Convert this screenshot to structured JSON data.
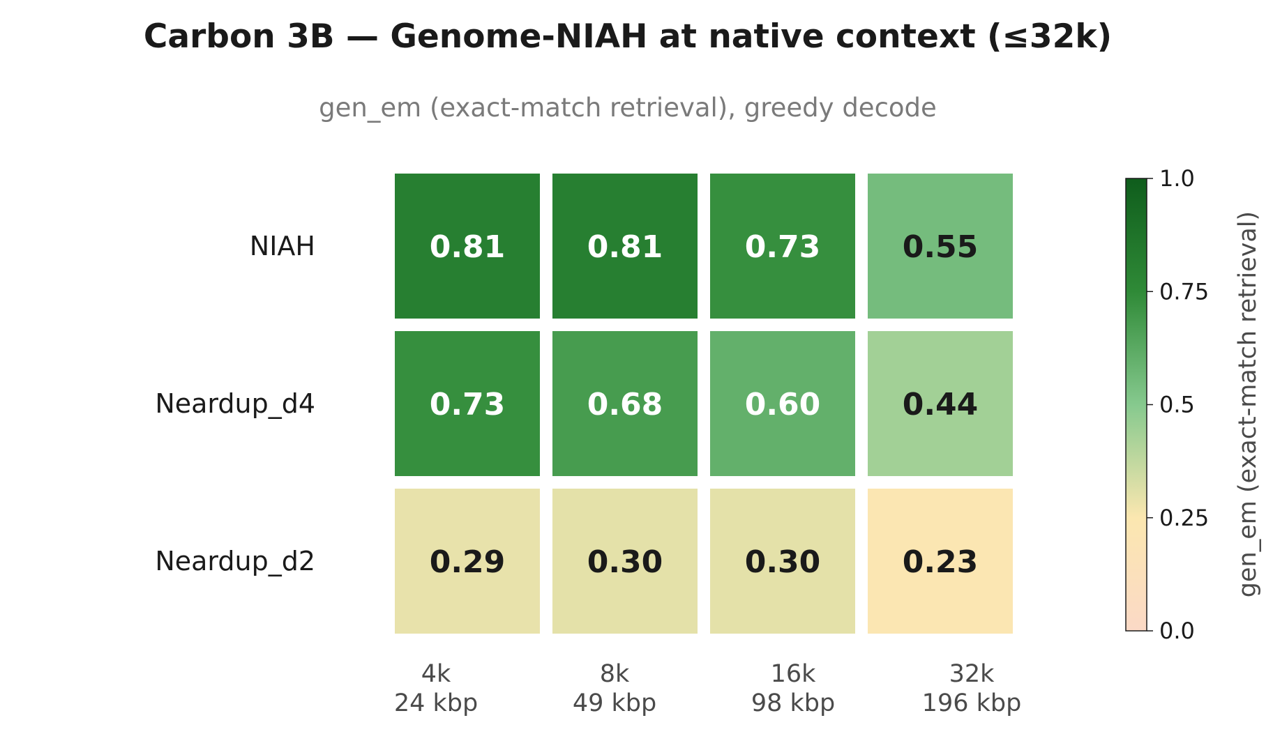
{
  "chart_data": {
    "type": "heatmap",
    "title": "Carbon 3B  —  Genome-NIAH at native context (≤32k)",
    "subtitle": "gen_em (exact-match retrieval), greedy decode",
    "rows": [
      "NIAH",
      "Neardup_d4",
      "Neardup_d2"
    ],
    "columns": [
      {
        "context": "4k",
        "length": "24 kbp"
      },
      {
        "context": "8k",
        "length": "49 kbp"
      },
      {
        "context": "16k",
        "length": "98 kbp"
      },
      {
        "context": "32k",
        "length": "196 kbp"
      }
    ],
    "values": [
      [
        0.81,
        0.81,
        0.73,
        0.55
      ],
      [
        0.73,
        0.68,
        0.6,
        0.44
      ],
      [
        0.29,
        0.3,
        0.3,
        0.23
      ]
    ],
    "value_labels": [
      [
        "0.81",
        "0.81",
        "0.73",
        "0.55"
      ],
      [
        "0.73",
        "0.68",
        "0.60",
        "0.44"
      ],
      [
        "0.29",
        "0.30",
        "0.30",
        "0.23"
      ]
    ],
    "colorbar": {
      "label": "gen_em  (exact-match retrieval)",
      "range": [
        0.0,
        1.0
      ],
      "ticks": [
        {
          "value": 0.0,
          "label": "0.0"
        },
        {
          "value": 0.25,
          "label": "0.25"
        },
        {
          "value": 0.5,
          "label": "0.5"
        },
        {
          "value": 0.75,
          "label": "0.75"
        },
        {
          "value": 1.0,
          "label": "1.0"
        }
      ],
      "colormap": [
        {
          "value": 0.0,
          "color": "#fbd9c6"
        },
        {
          "value": 0.25,
          "color": "#fbe7b0"
        },
        {
          "value": 0.5,
          "color": "#86c98e"
        },
        {
          "value": 0.75,
          "color": "#2f8a37"
        },
        {
          "value": 1.0,
          "color": "#0f5d1c"
        }
      ]
    },
    "text_colors": {
      "light": "#ffffff",
      "dark": "#1a1a1a"
    },
    "text_color_threshold": 0.57
  }
}
